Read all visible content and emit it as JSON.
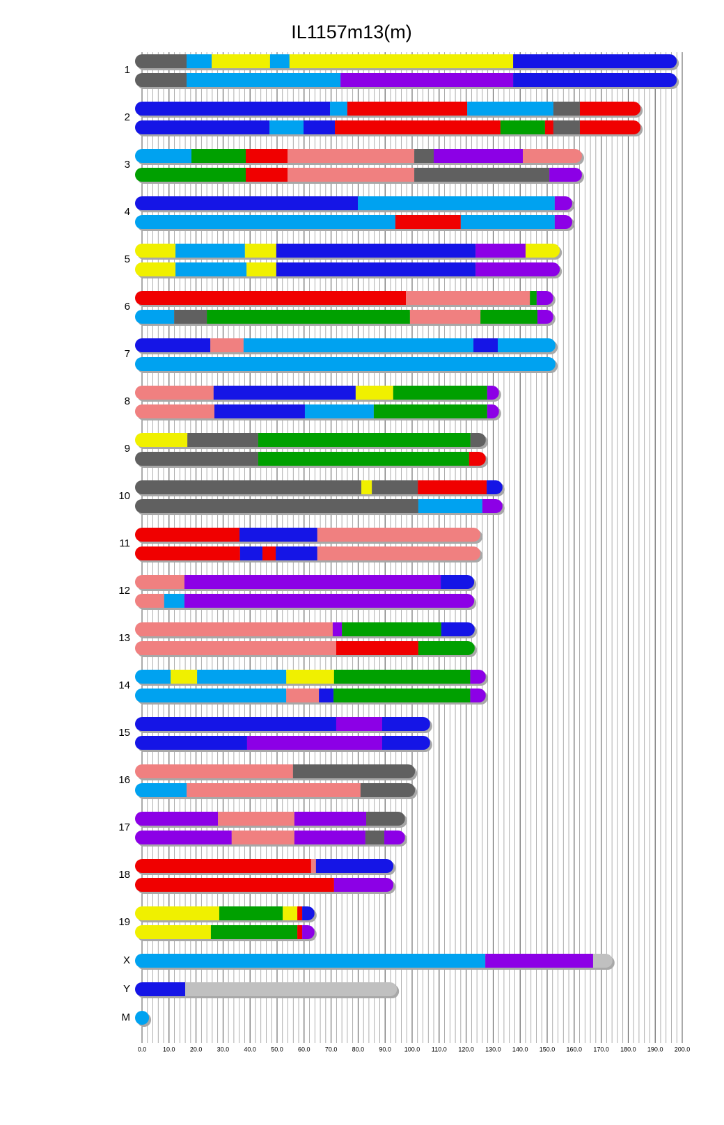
{
  "chart_data": {
    "type": "ideogram",
    "title": "IL1157m13(m)",
    "xlim": [
      0,
      200
    ],
    "xticks": [
      {
        "value": 0,
        "label": "0.0"
      },
      {
        "value": 10,
        "label": "10.0"
      },
      {
        "value": 20,
        "label": "20.0"
      },
      {
        "value": 30,
        "label": "30.0"
      },
      {
        "value": 40,
        "label": "40.0"
      },
      {
        "value": 50,
        "label": "50.0"
      },
      {
        "value": 60,
        "label": "60.0"
      },
      {
        "value": 70,
        "label": "70.0"
      },
      {
        "value": 80,
        "label": "80.0"
      },
      {
        "value": 90,
        "label": "90.0"
      },
      {
        "value": 100,
        "label": "100.0"
      },
      {
        "value": 110,
        "label": "110.0"
      },
      {
        "value": 120,
        "label": "120.0"
      },
      {
        "value": 130,
        "label": "130.0"
      },
      {
        "value": 140,
        "label": "140.0"
      },
      {
        "value": 150,
        "label": "150.0"
      },
      {
        "value": 160,
        "label": "160.0"
      },
      {
        "value": 170,
        "label": "170.0"
      },
      {
        "value": 180,
        "label": "180.0"
      },
      {
        "value": 190,
        "label": "190.0"
      },
      {
        "value": 200,
        "label": "200.0"
      }
    ],
    "xminorticks": [
      0,
      2,
      4,
      6,
      8,
      10,
      12,
      14,
      16,
      18,
      20,
      22,
      24,
      26,
      28,
      30,
      32,
      34,
      36,
      38,
      40,
      42,
      44,
      46,
      48,
      50,
      52,
      54,
      56,
      58,
      60,
      62,
      64,
      66,
      68,
      70,
      72,
      74,
      76,
      78,
      80,
      82,
      84,
      86,
      88,
      90,
      92,
      94,
      96,
      98,
      100,
      102,
      104,
      106,
      108,
      110,
      112,
      114,
      116,
      118,
      120,
      122,
      124,
      126,
      128,
      130,
      132,
      134,
      136,
      138,
      140,
      142,
      144,
      146,
      148,
      150,
      152,
      154,
      156,
      158,
      160,
      162,
      164,
      166,
      168,
      170,
      172,
      174,
      176,
      178,
      180,
      182,
      184,
      186,
      188,
      190,
      192,
      194,
      196,
      198,
      200
    ],
    "grid": true,
    "chromosomes": [
      {
        "name": "1",
        "tracks": [
          [
            {
              "end": 16.5,
              "color": "#606060"
            },
            {
              "end": 25.8,
              "color": "#00a2f0"
            },
            {
              "end": 47.4,
              "color": "#f0f000"
            },
            {
              "end": 54.6,
              "color": "#00a2f0"
            },
            {
              "end": 137.4,
              "color": "#f0f000"
            },
            {
              "end": 195.4,
              "color": "#1515e6"
            }
          ],
          [
            {
              "end": 16.5,
              "color": "#606060"
            },
            {
              "end": 73.5,
              "color": "#00a2f0"
            },
            {
              "end": 137.4,
              "color": "#8c00e6"
            },
            {
              "end": 195.4,
              "color": "#1515e6"
            }
          ]
        ]
      },
      {
        "name": "2",
        "tracks": [
          [
            {
              "end": 69.6,
              "color": "#1515e6"
            },
            {
              "end": 76.0,
              "color": "#00a2f0"
            },
            {
              "end": 120.4,
              "color": "#f00000"
            },
            {
              "end": 152.3,
              "color": "#00a2f0"
            },
            {
              "end": 162.1,
              "color": "#606060"
            },
            {
              "end": 182.0,
              "color": "#f00000"
            }
          ],
          [
            {
              "end": 47.2,
              "color": "#1515e6"
            },
            {
              "end": 59.8,
              "color": "#00a2f0"
            },
            {
              "end": 71.4,
              "color": "#1515e6"
            },
            {
              "end": 132.7,
              "color": "#f00000"
            },
            {
              "end": 149.2,
              "color": "#00a000"
            },
            {
              "end": 152.3,
              "color": "#f00000"
            },
            {
              "end": 162.1,
              "color": "#606060"
            },
            {
              "end": 182.0,
              "color": "#f00000"
            }
          ]
        ]
      },
      {
        "name": "3",
        "tracks": [
          [
            {
              "end": 18.3,
              "color": "#00a2f0"
            },
            {
              "end": 38.4,
              "color": "#00a000"
            },
            {
              "end": 53.9,
              "color": "#f00000"
            },
            {
              "end": 100.8,
              "color": "#f08080"
            },
            {
              "end": 108.0,
              "color": "#606060"
            },
            {
              "end": 141.0,
              "color": "#8c00e6"
            },
            {
              "end": 160.3,
              "color": "#f08080"
            }
          ],
          [
            {
              "end": 38.4,
              "color": "#00a000"
            },
            {
              "end": 53.9,
              "color": "#f00000"
            },
            {
              "end": 100.8,
              "color": "#f08080"
            },
            {
              "end": 150.8,
              "color": "#606060"
            },
            {
              "end": 160.3,
              "color": "#8c00e6"
            }
          ]
        ]
      },
      {
        "name": "4",
        "tracks": [
          [
            {
              "end": 79.9,
              "color": "#1515e6"
            },
            {
              "end": 152.8,
              "color": "#00a2f0"
            },
            {
              "end": 156.7,
              "color": "#8c00e6"
            }
          ],
          [
            {
              "end": 93.8,
              "color": "#00a2f0"
            },
            {
              "end": 118.0,
              "color": "#f00000"
            },
            {
              "end": 152.8,
              "color": "#00a2f0"
            },
            {
              "end": 156.7,
              "color": "#8c00e6"
            }
          ]
        ]
      },
      {
        "name": "5",
        "tracks": [
          [
            {
              "end": 12.4,
              "color": "#f0f000"
            },
            {
              "end": 38.1,
              "color": "#00a2f0"
            },
            {
              "end": 49.7,
              "color": "#f0f000"
            },
            {
              "end": 123.5,
              "color": "#1515e6"
            },
            {
              "end": 142.0,
              "color": "#8c00e6"
            },
            {
              "end": 152.1,
              "color": "#f0f000"
            }
          ],
          [
            {
              "end": 12.4,
              "color": "#f0f000"
            },
            {
              "end": 38.7,
              "color": "#00a2f0"
            },
            {
              "end": 49.7,
              "color": "#f0f000"
            },
            {
              "end": 123.5,
              "color": "#1515e6"
            },
            {
              "end": 152.1,
              "color": "#8c00e6"
            }
          ]
        ]
      },
      {
        "name": "6",
        "tracks": [
          [
            {
              "end": 97.7,
              "color": "#f00000"
            },
            {
              "end": 143.6,
              "color": "#f08080"
            },
            {
              "end": 146.1,
              "color": "#00a000"
            },
            {
              "end": 149.7,
              "color": "#8c00e6"
            }
          ],
          [
            {
              "end": 11.9,
              "color": "#00a2f0"
            },
            {
              "end": 24.0,
              "color": "#606060"
            },
            {
              "end": 99.2,
              "color": "#00a000"
            },
            {
              "end": 125.3,
              "color": "#f08080"
            },
            {
              "end": 146.4,
              "color": "#00a000"
            },
            {
              "end": 149.7,
              "color": "#8c00e6"
            }
          ]
        ]
      },
      {
        "name": "7",
        "tracks": [
          [
            {
              "end": 25.3,
              "color": "#1515e6"
            },
            {
              "end": 37.6,
              "color": "#f08080"
            },
            {
              "end": 122.7,
              "color": "#00a2f0"
            },
            {
              "end": 131.7,
              "color": "#1515e6"
            },
            {
              "end": 150.5,
              "color": "#00a2f0"
            }
          ],
          [
            {
              "end": 150.5,
              "color": "#00a2f0"
            }
          ]
        ]
      },
      {
        "name": "8",
        "tracks": [
          [
            {
              "end": 26.5,
              "color": "#f08080"
            },
            {
              "end": 79.1,
              "color": "#1515e6"
            },
            {
              "end": 93.0,
              "color": "#f0f000"
            },
            {
              "end": 127.8,
              "color": "#00a000"
            },
            {
              "end": 129.6,
              "color": "#8c00e6"
            }
          ],
          [
            {
              "end": 26.8,
              "color": "#f08080"
            },
            {
              "end": 60.3,
              "color": "#1515e6"
            },
            {
              "end": 85.8,
              "color": "#00a2f0"
            },
            {
              "end": 127.8,
              "color": "#00a000"
            },
            {
              "end": 129.6,
              "color": "#8c00e6"
            }
          ]
        ]
      },
      {
        "name": "9",
        "tracks": [
          [
            {
              "end": 16.8,
              "color": "#f0f000"
            },
            {
              "end": 43.0,
              "color": "#606060"
            },
            {
              "end": 121.6,
              "color": "#00a000"
            },
            {
              "end": 124.7,
              "color": "#606060"
            }
          ],
          [
            {
              "end": 43.0,
              "color": "#606060"
            },
            {
              "end": 121.1,
              "color": "#00a000"
            },
            {
              "end": 124.7,
              "color": "#f00000"
            }
          ]
        ]
      },
      {
        "name": "10",
        "tracks": [
          [
            {
              "end": 81.2,
              "color": "#606060"
            },
            {
              "end": 85.1,
              "color": "#f0f000"
            },
            {
              "end": 102.1,
              "color": "#606060"
            },
            {
              "end": 127.6,
              "color": "#f00000"
            },
            {
              "end": 130.9,
              "color": "#1515e6"
            }
          ],
          [
            {
              "end": 102.3,
              "color": "#606060"
            },
            {
              "end": 126.0,
              "color": "#00a2f0"
            },
            {
              "end": 130.9,
              "color": "#8c00e6"
            }
          ]
        ]
      },
      {
        "name": "11",
        "tracks": [
          [
            {
              "end": 36.1,
              "color": "#f00000"
            },
            {
              "end": 64.9,
              "color": "#1515e6"
            },
            {
              "end": 122.7,
              "color": "#f08080"
            }
          ],
          [
            {
              "end": 36.3,
              "color": "#f00000"
            },
            {
              "end": 44.6,
              "color": "#1515e6"
            },
            {
              "end": 49.5,
              "color": "#f00000"
            },
            {
              "end": 64.9,
              "color": "#1515e6"
            },
            {
              "end": 122.7,
              "color": "#f08080"
            }
          ]
        ]
      },
      {
        "name": "12",
        "tracks": [
          [
            {
              "end": 15.7,
              "color": "#f08080"
            },
            {
              "end": 110.6,
              "color": "#8c00e6"
            },
            {
              "end": 120.4,
              "color": "#1515e6"
            }
          ],
          [
            {
              "end": 8.2,
              "color": "#f08080"
            },
            {
              "end": 15.7,
              "color": "#00a2f0"
            },
            {
              "end": 120.4,
              "color": "#8c00e6"
            }
          ]
        ]
      },
      {
        "name": "13",
        "tracks": [
          [
            {
              "end": 70.6,
              "color": "#f08080"
            },
            {
              "end": 74.0,
              "color": "#8c00e6"
            },
            {
              "end": 110.8,
              "color": "#00a000"
            },
            {
              "end": 120.6,
              "color": "#1515e6"
            }
          ],
          [
            {
              "end": 71.9,
              "color": "#f08080"
            },
            {
              "end": 102.3,
              "color": "#f00000"
            },
            {
              "end": 120.6,
              "color": "#00a000"
            }
          ]
        ]
      },
      {
        "name": "14",
        "tracks": [
          [
            {
              "end": 10.6,
              "color": "#00a2f0"
            },
            {
              "end": 20.4,
              "color": "#f0f000"
            },
            {
              "end": 53.4,
              "color": "#00a2f0"
            },
            {
              "end": 71.1,
              "color": "#f0f000"
            },
            {
              "end": 121.5,
              "color": "#00a000"
            },
            {
              "end": 124.7,
              "color": "#8c00e6"
            }
          ],
          [
            {
              "end": 53.4,
              "color": "#00a2f0"
            },
            {
              "end": 65.5,
              "color": "#f08080"
            },
            {
              "end": 70.9,
              "color": "#1515e6"
            },
            {
              "end": 121.5,
              "color": "#00a000"
            },
            {
              "end": 124.7,
              "color": "#8c00e6"
            }
          ]
        ]
      },
      {
        "name": "15",
        "tracks": [
          [
            {
              "end": 71.9,
              "color": "#1515e6"
            },
            {
              "end": 88.9,
              "color": "#8c00e6"
            },
            {
              "end": 104.1,
              "color": "#1515e6"
            }
          ],
          [
            {
              "end": 38.9,
              "color": "#1515e6"
            },
            {
              "end": 88.9,
              "color": "#8c00e6"
            },
            {
              "end": 104.1,
              "color": "#1515e6"
            }
          ]
        ]
      },
      {
        "name": "16",
        "tracks": [
          [
            {
              "end": 55.9,
              "color": "#f08080"
            },
            {
              "end": 98.5,
              "color": "#606060"
            }
          ],
          [
            {
              "end": 16.5,
              "color": "#00a2f0"
            },
            {
              "end": 80.9,
              "color": "#f08080"
            },
            {
              "end": 98.5,
              "color": "#606060"
            }
          ]
        ]
      },
      {
        "name": "17",
        "tracks": [
          [
            {
              "end": 28.1,
              "color": "#8c00e6"
            },
            {
              "end": 56.4,
              "color": "#f08080"
            },
            {
              "end": 83.0,
              "color": "#8c00e6"
            },
            {
              "end": 94.8,
              "color": "#606060"
            }
          ],
          [
            {
              "end": 33.2,
              "color": "#8c00e6"
            },
            {
              "end": 56.4,
              "color": "#f08080"
            },
            {
              "end": 82.7,
              "color": "#8c00e6"
            },
            {
              "end": 89.7,
              "color": "#606060"
            },
            {
              "end": 94.8,
              "color": "#8c00e6"
            }
          ]
        ]
      },
      {
        "name": "18",
        "tracks": [
          [
            {
              "end": 62.6,
              "color": "#f00000"
            },
            {
              "end": 64.4,
              "color": "#f08080"
            },
            {
              "end": 90.5,
              "color": "#1515e6"
            }
          ],
          [
            {
              "end": 71.1,
              "color": "#f00000"
            },
            {
              "end": 90.5,
              "color": "#8c00e6"
            }
          ]
        ]
      },
      {
        "name": "19",
        "tracks": [
          [
            {
              "end": 28.6,
              "color": "#f0f000"
            },
            {
              "end": 52.1,
              "color": "#00a000"
            },
            {
              "end": 57.5,
              "color": "#f0f000"
            },
            {
              "end": 59.3,
              "color": "#f00000"
            },
            {
              "end": 61.3,
              "color": "#1515e6"
            }
          ],
          [
            {
              "end": 25.5,
              "color": "#f0f000"
            },
            {
              "end": 57.5,
              "color": "#00a000"
            },
            {
              "end": 59.3,
              "color": "#f00000"
            },
            {
              "end": 61.3,
              "color": "#8c00e6"
            }
          ]
        ]
      },
      {
        "name": "X",
        "tracks": [
          [
            {
              "end": 127.1,
              "color": "#00a2f0"
            },
            {
              "end": 167.0,
              "color": "#8c00e6"
            },
            {
              "end": 171.6,
              "color": "#c0c0c0"
            }
          ]
        ]
      },
      {
        "name": "Y",
        "tracks": [
          [
            {
              "end": 16.0,
              "color": "#1515e6"
            },
            {
              "end": 91.8,
              "color": "#c0c0c0"
            }
          ]
        ]
      },
      {
        "name": "M",
        "tracks": [
          [
            {
              "end": 0.016,
              "color": "#00a2f0"
            }
          ]
        ]
      }
    ]
  }
}
